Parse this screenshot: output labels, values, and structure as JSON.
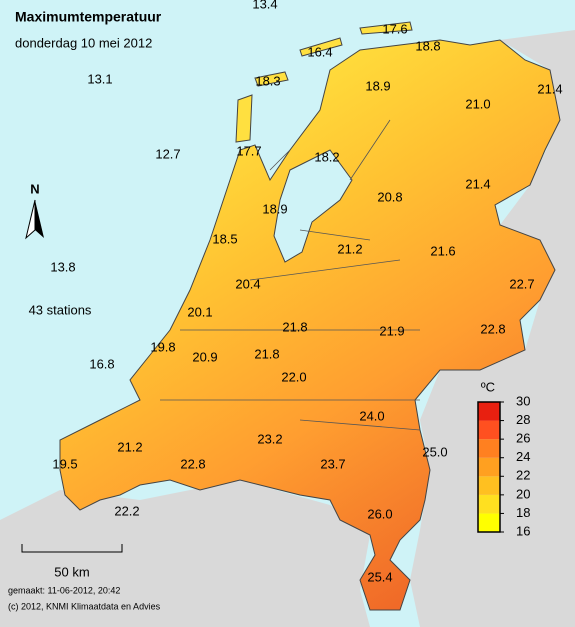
{
  "title": "Maximumtemperatuur",
  "subtitle": "donderdag 10 mei 2012",
  "stations": [
    "13.4",
    "17.6",
    "18.8",
    "16.4",
    "18.3",
    "18.9",
    "21.0",
    "21.4",
    "13.1",
    "12.7",
    "17.7",
    "18.2",
    "20.8",
    "21.4",
    "18.9",
    "18.5",
    "21.2",
    "21.6",
    "13.8",
    "22.7",
    "20.4",
    "20.1",
    "21.8",
    "21.9",
    "22.8",
    "19.8",
    "20.9",
    "21.8",
    "16.8",
    "22.0",
    "24.0",
    "23.2",
    "25.0",
    "21.2",
    "19.5",
    "22.8",
    "23.7",
    "22.2",
    "26.0",
    "25.4"
  ],
  "station_count": "43 stations",
  "north": "N",
  "scale": "50 km",
  "legend": {
    "unit": "ºC",
    "ticks": [
      16,
      18,
      20,
      22,
      24,
      26,
      28,
      30
    ]
  },
  "footer": [
    "gemaakt: 11-06-2012, 20:42",
    "(c) 2012, KNMI Klimaatdata en Advies"
  ]
}
